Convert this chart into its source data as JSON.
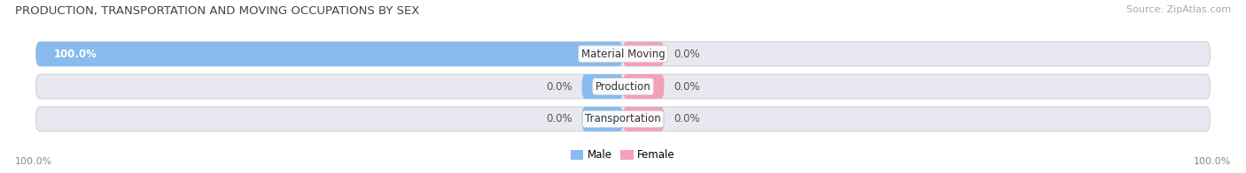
{
  "title": "PRODUCTION, TRANSPORTATION AND MOVING OCCUPATIONS BY SEX",
  "source": "Source: ZipAtlas.com",
  "categories": [
    "Material Moving",
    "Production",
    "Transportation"
  ],
  "male_values": [
    100.0,
    0.0,
    0.0
  ],
  "female_values": [
    0.0,
    0.0,
    0.0
  ],
  "male_color": "#88bbee",
  "female_color": "#f4a0b8",
  "bar_bg_color": "#e8e8f0",
  "bar_bg_edge": "#d0d0dc",
  "title_fontsize": 9.5,
  "source_fontsize": 8,
  "label_fontsize": 8.5,
  "cat_label_fontsize": 8.5,
  "tick_fontsize": 8,
  "left_axis_label": "100.0%",
  "right_axis_label": "100.0%",
  "background_color": "#ffffff",
  "legend_male": "Male",
  "legend_female": "Female"
}
